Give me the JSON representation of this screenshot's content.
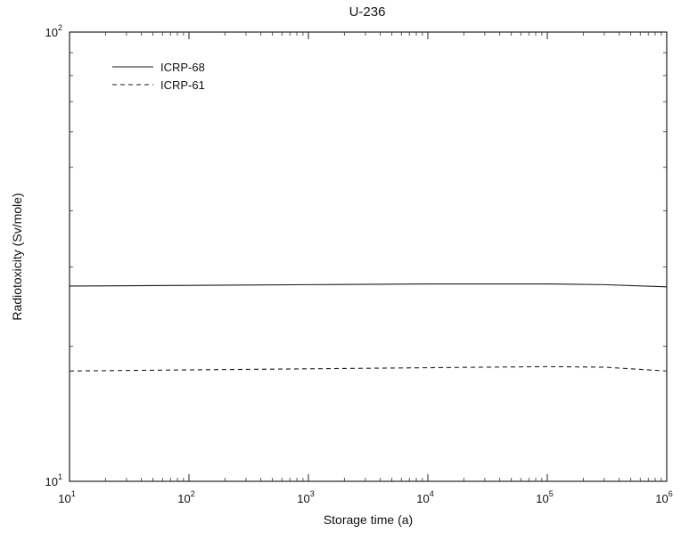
{
  "chart_data": {
    "type": "line",
    "title": "U-236",
    "xlabel": "Storage time (a)",
    "ylabel": "Radiotoxicity (Sv/mole)",
    "x_scale": "log",
    "y_scale": "log",
    "xlim": [
      10,
      1000000
    ],
    "ylim": [
      10,
      100
    ],
    "grid": false,
    "legend_position": "top-left",
    "x_ticks": [
      {
        "base": "10",
        "exp": "1",
        "value": 10
      },
      {
        "base": "10",
        "exp": "2",
        "value": 100
      },
      {
        "base": "10",
        "exp": "3",
        "value": 1000
      },
      {
        "base": "10",
        "exp": "4",
        "value": 10000
      },
      {
        "base": "10",
        "exp": "5",
        "value": 100000
      },
      {
        "base": "10",
        "exp": "6",
        "value": 1000000
      }
    ],
    "y_ticks": [
      {
        "base": "10",
        "exp": "1",
        "value": 10
      },
      {
        "base": "10",
        "exp": "2",
        "value": 100
      }
    ],
    "series": [
      {
        "name": "ICRP-68",
        "style": "solid",
        "x": [
          10,
          100,
          1000,
          10000,
          100000,
          300000,
          1000000
        ],
        "values": [
          27.2,
          27.3,
          27.4,
          27.5,
          27.5,
          27.4,
          27.1
        ]
      },
      {
        "name": "ICRP-61",
        "style": "dashed",
        "x": [
          10,
          100,
          1000,
          10000,
          100000,
          300000,
          1000000
        ],
        "values": [
          17.6,
          17.7,
          17.8,
          17.9,
          18.0,
          17.95,
          17.6
        ]
      }
    ]
  }
}
